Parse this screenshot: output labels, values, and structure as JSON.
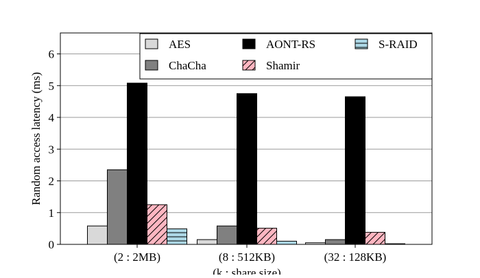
{
  "chart_data": {
    "type": "bar",
    "xlabel": "(k : share size)",
    "ylabel": "Random access latency (ms)",
    "ylim": [
      0,
      6.66
    ],
    "yticks": [
      0,
      1,
      2,
      3,
      4,
      5,
      6
    ],
    "grid": "horizontal",
    "legend_position": "top-right",
    "categories": [
      "(2 : 2MB)",
      "(8 : 512KB)",
      "(32 : 128KB)"
    ],
    "series": [
      {
        "name": "AES",
        "values": [
          0.58,
          0.15,
          0.05
        ],
        "color": "#d9d9d9",
        "pattern": "solid"
      },
      {
        "name": "ChaCha",
        "values": [
          2.35,
          0.58,
          0.15
        ],
        "color": "#808080",
        "pattern": "solid"
      },
      {
        "name": "AONT-RS",
        "values": [
          5.08,
          4.75,
          4.65
        ],
        "color": "#000000",
        "pattern": "solid"
      },
      {
        "name": "Shamir",
        "values": [
          1.25,
          0.51,
          0.38
        ],
        "color": "#ffb6c1",
        "pattern": "diagonal-hatch"
      },
      {
        "name": "S-RAID",
        "values": [
          0.49,
          0.1,
          0.02
        ],
        "color": "#add8e6",
        "pattern": "horizontal-hatch"
      }
    ],
    "legend_order": [
      "AES",
      "AONT-RS",
      "S-RAID",
      "ChaCha",
      "Shamir"
    ]
  }
}
